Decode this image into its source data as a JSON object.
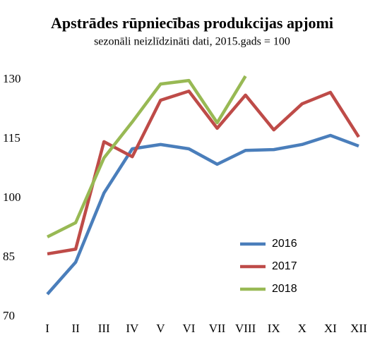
{
  "chart_data": {
    "type": "line",
    "title": "Apstrādes rūpniecības produkcijas apjomi",
    "subtitle": "sezonāli neizlīdzināti dati, 2015.gads = 100",
    "categories": [
      "I",
      "II",
      "III",
      "IV",
      "V",
      "VI",
      "VII",
      "VIII",
      "IX",
      "X",
      "XI",
      "XII"
    ],
    "series": [
      {
        "name": "2016",
        "color": "#4a7ebb",
        "values": [
          75.7,
          83.8,
          101.3,
          112.5,
          113.6,
          112.5,
          108.6,
          112.1,
          112.3,
          113.6,
          115.9,
          113.2
        ]
      },
      {
        "name": "2017",
        "color": "#be4b48",
        "values": [
          85.9,
          87.1,
          114.3,
          110.5,
          124.8,
          127.1,
          117.7,
          126.1,
          117.3,
          123.9,
          126.8,
          115.5
        ]
      },
      {
        "name": "2018",
        "color": "#98b954",
        "values": [
          90.2,
          93.8,
          110.2,
          119.3,
          128.9,
          129.8,
          119.1,
          130.9,
          null,
          null,
          null,
          null
        ]
      }
    ],
    "ylim": [
      70,
      130
    ],
    "yticks": [
      70,
      85,
      100,
      115,
      130
    ],
    "grid": false,
    "legend": "lower right"
  }
}
